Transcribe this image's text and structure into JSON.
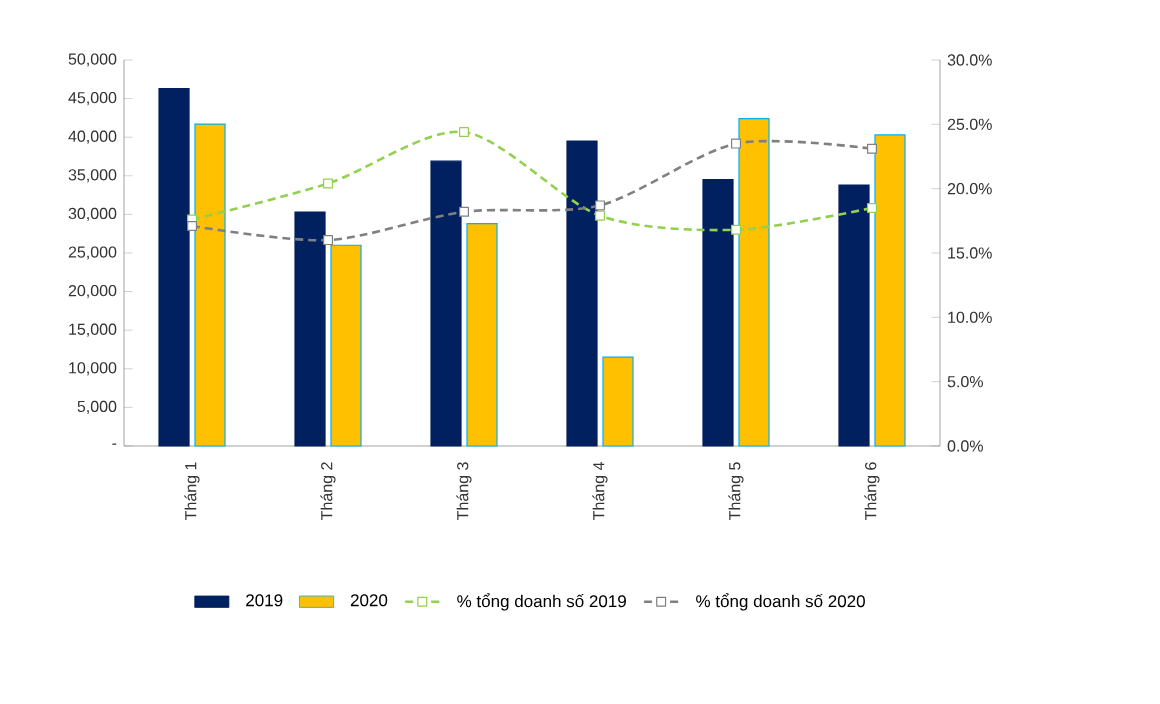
{
  "chart_data": {
    "type": "bar",
    "categories": [
      "Tháng 1",
      "Tháng 2",
      "Tháng 3",
      "Tháng 4",
      "Tháng 5",
      "Tháng 6"
    ],
    "series": [
      {
        "name": "2019",
        "color": "#002060",
        "values": [
          46300,
          30300,
          36900,
          39500,
          34500,
          33800
        ]
      },
      {
        "name": "2020",
        "color": "#ffc000",
        "values": [
          41700,
          26000,
          28800,
          11500,
          42400,
          40300
        ]
      },
      {
        "name": "% tổng doanh số 2019",
        "type": "line",
        "axis": "y2",
        "color": "#92d050",
        "line_style": "dashed",
        "values": [
          17.6,
          20.4,
          24.4,
          17.9,
          16.8,
          18.5
        ]
      },
      {
        "name": "% tổng doanh số 2020",
        "type": "line",
        "axis": "y2",
        "color": "#808080",
        "line_style": "dashed",
        "values": [
          17.1,
          16.0,
          18.2,
          18.7,
          23.5,
          23.1
        ]
      }
    ],
    "ylim": [
      0,
      50000
    ],
    "yticks": [
      {
        "value": 0,
        "label": "-"
      },
      {
        "value": 5000,
        "label": "5,000"
      },
      {
        "value": 10000,
        "label": "10,000"
      },
      {
        "value": 15000,
        "label": "15,000"
      },
      {
        "value": 20000,
        "label": "20,000"
      },
      {
        "value": 25000,
        "label": "25,000"
      },
      {
        "value": 30000,
        "label": "30,000"
      },
      {
        "value": 35000,
        "label": "35,000"
      },
      {
        "value": 40000,
        "label": "40,000"
      },
      {
        "value": 45000,
        "label": "45,000"
      },
      {
        "value": 50000,
        "label": "50,000"
      }
    ],
    "y2lim": [
      0,
      30
    ],
    "y2ticks": [
      {
        "value": 0,
        "label": "0.0%"
      },
      {
        "value": 5,
        "label": "5.0%"
      },
      {
        "value": 10,
        "label": "10.0%"
      },
      {
        "value": 15,
        "label": "15.0%"
      },
      {
        "value": 20,
        "label": "20.0%"
      },
      {
        "value": 25,
        "label": "25.0%"
      },
      {
        "value": 30,
        "label": "30.0%"
      }
    ],
    "marker": "square",
    "grid": false,
    "legend": "bottom"
  }
}
